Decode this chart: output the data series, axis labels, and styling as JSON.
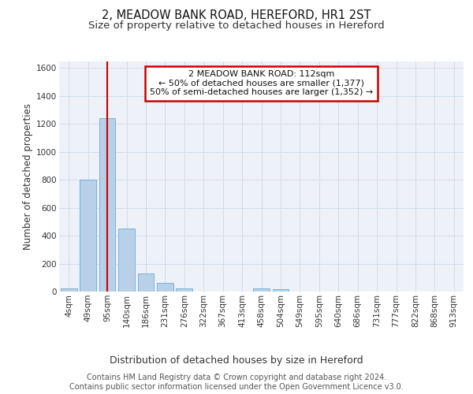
{
  "title": "2, MEADOW BANK ROAD, HEREFORD, HR1 2ST",
  "subtitle": "Size of property relative to detached houses in Hereford",
  "xlabel": "Distribution of detached houses by size in Hereford",
  "ylabel": "Number of detached properties",
  "bin_labels": [
    "4sqm",
    "49sqm",
    "95sqm",
    "140sqm",
    "186sqm",
    "231sqm",
    "276sqm",
    "322sqm",
    "367sqm",
    "413sqm",
    "458sqm",
    "504sqm",
    "549sqm",
    "595sqm",
    "640sqm",
    "686sqm",
    "731sqm",
    "777sqm",
    "822sqm",
    "868sqm",
    "913sqm"
  ],
  "bar_heights": [
    25,
    800,
    1240,
    450,
    130,
    62,
    25,
    0,
    0,
    0,
    25,
    15,
    0,
    0,
    0,
    0,
    0,
    0,
    0,
    0,
    0
  ],
  "bar_color": "#b8d0e8",
  "bar_edgecolor": "#6aaad4",
  "red_line_x": 2.0,
  "ylim": [
    0,
    1650
  ],
  "yticks": [
    0,
    200,
    400,
    600,
    800,
    1000,
    1200,
    1400,
    1600
  ],
  "annotation_text": "2 MEADOW BANK ROAD: 112sqm\n← 50% of detached houses are smaller (1,377)\n50% of semi-detached houses are larger (1,352) →",
  "annotation_box_color": "#ffffff",
  "annotation_box_edgecolor": "#cc0000",
  "grid_color": "#d0dcea",
  "background_color": "#eef2f8",
  "footer_text": "Contains HM Land Registry data © Crown copyright and database right 2024.\nContains public sector information licensed under the Open Government Licence v3.0.",
  "title_fontsize": 10.5,
  "subtitle_fontsize": 9.5,
  "xlabel_fontsize": 9,
  "ylabel_fontsize": 8.5,
  "tick_fontsize": 7.5,
  "ann_fontsize": 8,
  "footer_fontsize": 7
}
